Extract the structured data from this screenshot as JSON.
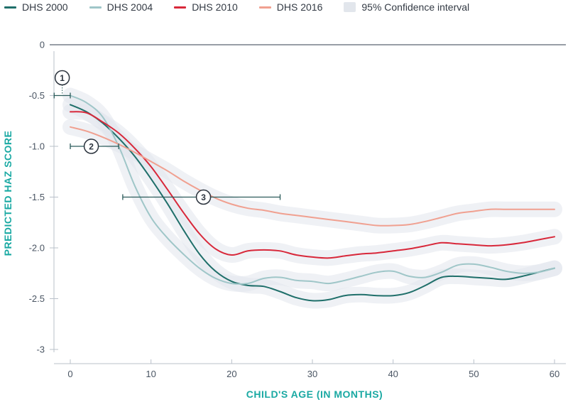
{
  "chart_data": {
    "type": "line",
    "xlabel": "CHILD'S AGE (IN MONTHS)",
    "ylabel": "PREDICTED HAZ SCORE",
    "xlim": [
      -2,
      62
    ],
    "ylim": [
      -3,
      0.1
    ],
    "xticks": [
      0,
      10,
      20,
      30,
      40,
      50,
      60
    ],
    "yticks": [
      0,
      -0.5,
      -1.0,
      -1.5,
      -2.0,
      -2.5,
      -3
    ],
    "ytick_labels": [
      "0",
      "-0.5",
      "-1.0",
      "-1.5",
      "-2.0",
      "-2.5",
      "-3"
    ],
    "legend": [
      {
        "label": "DHS 2000",
        "color": "#1f6f6a",
        "kind": "line"
      },
      {
        "label": "DHS 2004",
        "color": "#9fc6c8",
        "kind": "line"
      },
      {
        "label": "DHS 2010",
        "color": "#d8283a",
        "kind": "line"
      },
      {
        "label": "DHS 2016",
        "color": "#f0a090",
        "kind": "line"
      },
      {
        "label": "95% Confidence interval",
        "color": "#e2e6ec",
        "kind": "band"
      }
    ],
    "legend_position": "top",
    "series": [
      {
        "name": "DHS 2000",
        "color": "#1f6f6a",
        "x": [
          0,
          2,
          4,
          6,
          8,
          10,
          12,
          14,
          16,
          18,
          20,
          22,
          24,
          26,
          28,
          30,
          32,
          34,
          36,
          38,
          40,
          42,
          44,
          46,
          48,
          50,
          52,
          54,
          56,
          58,
          60
        ],
        "y": [
          -0.59,
          -0.66,
          -0.77,
          -0.92,
          -1.1,
          -1.32,
          -1.56,
          -1.82,
          -2.06,
          -2.23,
          -2.33,
          -2.37,
          -2.38,
          -2.43,
          -2.49,
          -2.52,
          -2.51,
          -2.47,
          -2.46,
          -2.47,
          -2.47,
          -2.44,
          -2.37,
          -2.29,
          -2.28,
          -2.29,
          -2.3,
          -2.31,
          -2.28,
          -2.24,
          -2.2
        ]
      },
      {
        "name": "DHS 2004",
        "color": "#9fc6c8",
        "x": [
          0,
          2,
          4,
          6,
          8,
          10,
          12,
          14,
          16,
          18,
          20,
          22,
          24,
          26,
          28,
          30,
          32,
          34,
          36,
          38,
          40,
          42,
          44,
          46,
          48,
          50,
          52,
          54,
          56,
          58,
          60
        ],
        "y": [
          -0.5,
          -0.57,
          -0.71,
          -1.0,
          -1.39,
          -1.7,
          -1.9,
          -2.06,
          -2.2,
          -2.3,
          -2.35,
          -2.35,
          -2.3,
          -2.29,
          -2.32,
          -2.33,
          -2.35,
          -2.32,
          -2.28,
          -2.24,
          -2.23,
          -2.28,
          -2.29,
          -2.24,
          -2.17,
          -2.16,
          -2.19,
          -2.23,
          -2.25,
          -2.24,
          -2.2
        ]
      },
      {
        "name": "DHS 2010",
        "color": "#d8283a",
        "x": [
          0,
          2,
          4,
          6,
          8,
          10,
          12,
          14,
          16,
          18,
          20,
          22,
          24,
          26,
          28,
          30,
          32,
          34,
          36,
          38,
          40,
          42,
          44,
          46,
          48,
          50,
          52,
          54,
          56,
          58,
          60
        ],
        "y": [
          -0.66,
          -0.67,
          -0.76,
          -0.87,
          -1.02,
          -1.2,
          -1.42,
          -1.65,
          -1.86,
          -2.01,
          -2.07,
          -2.03,
          -2.02,
          -2.03,
          -2.07,
          -2.09,
          -2.1,
          -2.08,
          -2.06,
          -2.05,
          -2.03,
          -2.01,
          -1.98,
          -1.95,
          -1.96,
          -1.97,
          -1.98,
          -1.97,
          -1.95,
          -1.92,
          -1.89
        ]
      },
      {
        "name": "DHS 2016",
        "color": "#f0a090",
        "x": [
          0,
          2,
          4,
          6,
          8,
          10,
          12,
          14,
          16,
          18,
          20,
          22,
          24,
          26,
          28,
          30,
          32,
          34,
          36,
          38,
          40,
          42,
          44,
          46,
          48,
          50,
          52,
          54,
          56,
          58,
          60
        ],
        "y": [
          -0.81,
          -0.85,
          -0.91,
          -0.98,
          -1.06,
          -1.15,
          -1.24,
          -1.34,
          -1.43,
          -1.51,
          -1.57,
          -1.61,
          -1.63,
          -1.66,
          -1.68,
          -1.7,
          -1.72,
          -1.74,
          -1.76,
          -1.78,
          -1.78,
          -1.77,
          -1.74,
          -1.7,
          -1.66,
          -1.64,
          -1.62,
          -1.62,
          -1.62,
          -1.62,
          -1.62
        ]
      }
    ],
    "annotations": [
      {
        "label": "1",
        "y": -0.5,
        "x_start": -2,
        "x_end": 0
      },
      {
        "label": "2",
        "y": -1.0,
        "x_start": 0,
        "x_end": 6
      },
      {
        "label": "3",
        "y": -1.5,
        "x_start": 6.5,
        "x_end": 26
      }
    ]
  }
}
